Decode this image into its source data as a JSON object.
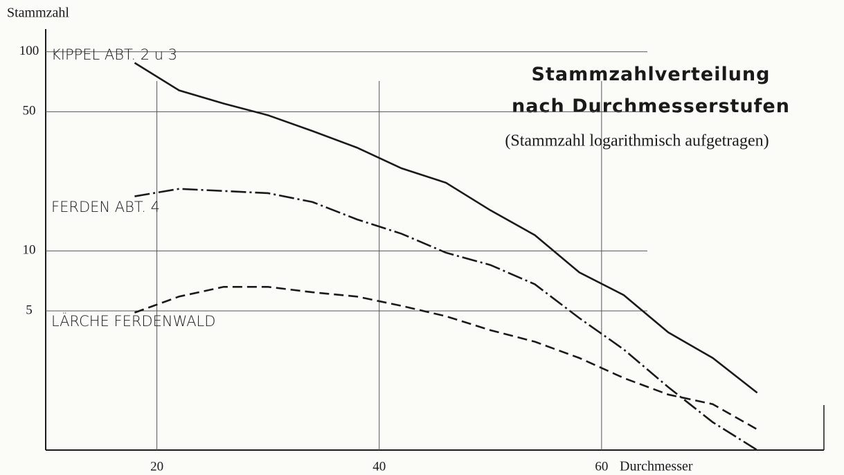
{
  "chart_data": {
    "type": "line",
    "title": "Stammzahlverteilung nach Durchmesserstufen",
    "subtitle": "(Stammzahl logarithmisch aufgetragen)",
    "y_label": "Stammzahl",
    "x_label": "Durchmesser",
    "x": [
      18,
      22,
      26,
      30,
      34,
      38,
      42,
      46,
      50,
      54,
      58,
      62,
      66,
      70,
      74
    ],
    "series": [
      {
        "name": "KIPPEL ABT. 2 u 3",
        "color": "#1a1a1a",
        "dash": "solid",
        "values": [
          88,
          64,
          55,
          48,
          40,
          33,
          26,
          22,
          16,
          12,
          7.8,
          6.0,
          3.9,
          2.9,
          1.94
        ]
      },
      {
        "name": "FERDEN ABT. 4",
        "color": "#1a1a1a",
        "dash": "dashdot",
        "values": [
          18.8,
          20.5,
          20,
          19.5,
          17.6,
          14.4,
          12.2,
          9.8,
          8.5,
          6.8,
          4.6,
          3.2,
          2.07,
          1.38,
          1
        ]
      },
      {
        "name": "LÄRCHE FERDENWALD",
        "color": "#1a1a1a",
        "dash": "dashed",
        "values": [
          4.9,
          5.9,
          6.6,
          6.6,
          6.2,
          5.9,
          5.3,
          4.7,
          4.0,
          3.5,
          2.9,
          2.3,
          1.9,
          1.7,
          1.27
        ]
      }
    ],
    "xlim": [
      10,
      80
    ],
    "xticks": [
      20,
      40,
      60
    ],
    "ylim": [
      1,
      130
    ],
    "yticks": [
      5,
      10,
      50,
      100
    ],
    "log_y": true,
    "grid": true
  }
}
